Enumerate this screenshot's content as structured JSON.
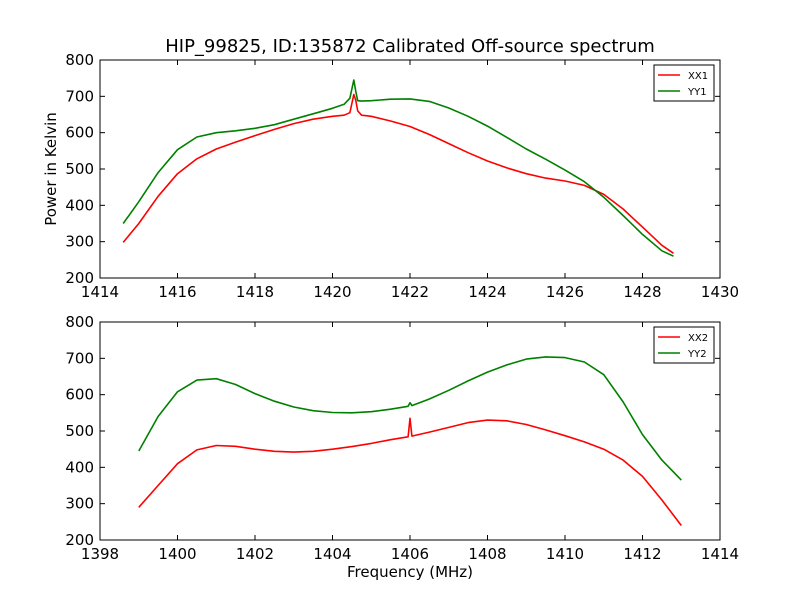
{
  "chart_data": [
    {
      "type": "line",
      "title": "HIP_99825, ID:135872 Calibrated Off-source spectrum",
      "xlabel": "",
      "ylabel": "Power in Kelvin",
      "xlim": [
        1414,
        1430
      ],
      "ylim": [
        200,
        800
      ],
      "xticks": [
        "1414",
        "1416",
        "1418",
        "1420",
        "1422",
        "1424",
        "1426",
        "1428",
        "1430"
      ],
      "yticks": [
        "200",
        "300",
        "400",
        "500",
        "600",
        "700",
        "800"
      ],
      "legend_position": "top-right",
      "series": [
        {
          "name": "XX1",
          "color": "#ff0000",
          "x": [
            1414.6,
            1415.0,
            1415.5,
            1416.0,
            1416.5,
            1417.0,
            1417.5,
            1418.0,
            1418.5,
            1419.0,
            1419.5,
            1420.0,
            1420.3,
            1420.45,
            1420.55,
            1420.6,
            1420.65,
            1420.75,
            1421.0,
            1421.5,
            1422.0,
            1422.5,
            1423.0,
            1423.5,
            1424.0,
            1424.5,
            1425.0,
            1425.5,
            1426.0,
            1426.5,
            1427.0,
            1427.5,
            1428.0,
            1428.5,
            1428.8
          ],
          "y": [
            298,
            350,
            425,
            487,
            528,
            555,
            574,
            592,
            609,
            625,
            637,
            645,
            648,
            655,
            705,
            690,
            660,
            648,
            645,
            632,
            617,
            595,
            570,
            545,
            522,
            503,
            487,
            475,
            467,
            455,
            430,
            390,
            340,
            290,
            268
          ]
        },
        {
          "name": "YY1",
          "color": "#008000",
          "x": [
            1414.6,
            1415.0,
            1415.5,
            1416.0,
            1416.5,
            1417.0,
            1417.5,
            1418.0,
            1418.5,
            1419.0,
            1419.5,
            1420.0,
            1420.3,
            1420.45,
            1420.55,
            1420.6,
            1420.65,
            1420.75,
            1421.0,
            1421.5,
            1422.0,
            1422.5,
            1423.0,
            1423.5,
            1424.0,
            1424.5,
            1425.0,
            1425.5,
            1426.0,
            1426.5,
            1427.0,
            1427.5,
            1428.0,
            1428.5,
            1428.8
          ],
          "y": [
            350,
            410,
            490,
            553,
            588,
            600,
            605,
            612,
            622,
            637,
            652,
            667,
            678,
            695,
            745,
            715,
            688,
            687,
            688,
            692,
            693,
            686,
            668,
            645,
            618,
            587,
            555,
            527,
            497,
            465,
            422,
            372,
            320,
            275,
            260
          ]
        }
      ]
    },
    {
      "type": "line",
      "title": "",
      "xlabel": "Frequency (MHz)",
      "ylabel": "",
      "xlim": [
        1398,
        1414
      ],
      "ylim": [
        200,
        800
      ],
      "xticks": [
        "1398",
        "1400",
        "1402",
        "1404",
        "1406",
        "1408",
        "1410",
        "1412",
        "1414"
      ],
      "yticks": [
        "200",
        "300",
        "400",
        "500",
        "600",
        "700",
        "800"
      ],
      "legend_position": "top-right",
      "series": [
        {
          "name": "XX2",
          "color": "#ff0000",
          "x": [
            1399.0,
            1399.5,
            1400.0,
            1400.5,
            1401.0,
            1401.5,
            1402.0,
            1402.5,
            1403.0,
            1403.5,
            1404.0,
            1404.5,
            1405.0,
            1405.5,
            1405.95,
            1406.0,
            1406.05,
            1406.5,
            1407.0,
            1407.5,
            1408.0,
            1408.5,
            1409.0,
            1409.5,
            1410.0,
            1410.5,
            1411.0,
            1411.5,
            1412.0,
            1412.5,
            1413.0
          ],
          "y": [
            290,
            350,
            410,
            448,
            460,
            458,
            450,
            444,
            442,
            444,
            450,
            457,
            466,
            476,
            484,
            535,
            486,
            497,
            510,
            523,
            530,
            528,
            518,
            503,
            487,
            470,
            450,
            420,
            375,
            310,
            240
          ]
        },
        {
          "name": "YY2",
          "color": "#008000",
          "x": [
            1399.0,
            1399.5,
            1400.0,
            1400.5,
            1401.0,
            1401.5,
            1402.0,
            1402.5,
            1403.0,
            1403.5,
            1404.0,
            1404.5,
            1405.0,
            1405.5,
            1405.95,
            1406.0,
            1406.05,
            1406.5,
            1407.0,
            1407.5,
            1408.0,
            1408.5,
            1409.0,
            1409.5,
            1410.0,
            1410.5,
            1411.0,
            1411.5,
            1412.0,
            1412.5,
            1413.0
          ],
          "y": [
            445,
            540,
            608,
            640,
            644,
            628,
            603,
            582,
            566,
            556,
            551,
            550,
            553,
            560,
            568,
            578,
            570,
            588,
            612,
            638,
            662,
            682,
            698,
            704,
            702,
            690,
            655,
            580,
            490,
            420,
            365
          ]
        }
      ]
    }
  ]
}
